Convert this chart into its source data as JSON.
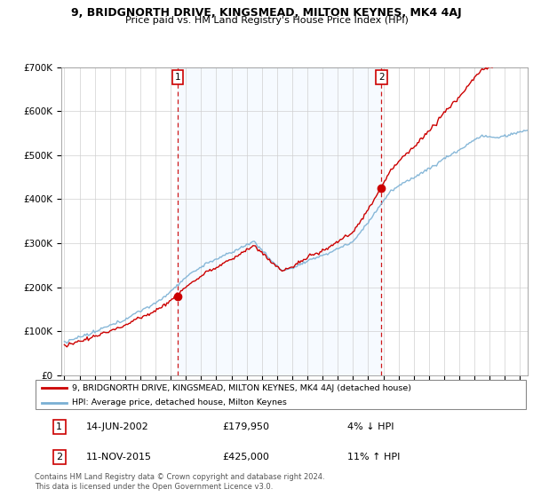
{
  "title": "9, BRIDGNORTH DRIVE, KINGSMEAD, MILTON KEYNES, MK4 4AJ",
  "subtitle": "Price paid vs. HM Land Registry's House Price Index (HPI)",
  "legend_line1": "9, BRIDGNORTH DRIVE, KINGSMEAD, MILTON KEYNES, MK4 4AJ (detached house)",
  "legend_line2": "HPI: Average price, detached house, Milton Keynes",
  "sale1_label": "1",
  "sale1_date": "14-JUN-2002",
  "sale1_price": "£179,950",
  "sale1_hpi": "4% ↓ HPI",
  "sale2_label": "2",
  "sale2_date": "11-NOV-2015",
  "sale2_price": "£425,000",
  "sale2_hpi": "11% ↑ HPI",
  "footer": "Contains HM Land Registry data © Crown copyright and database right 2024.\nThis data is licensed under the Open Government Licence v3.0.",
  "sale1_x": 2002.46,
  "sale2_x": 2015.87,
  "sale1_y": 179950,
  "sale2_y": 425000,
  "hpi_color": "#7ab0d4",
  "price_color": "#cc0000",
  "vline_color": "#cc0000",
  "marker_color": "#cc0000",
  "shade_color": "#ddeeff",
  "ylim": [
    0,
    700000
  ],
  "xlim_start": 1994.8,
  "xlim_end": 2025.5,
  "background_color": "#ffffff"
}
